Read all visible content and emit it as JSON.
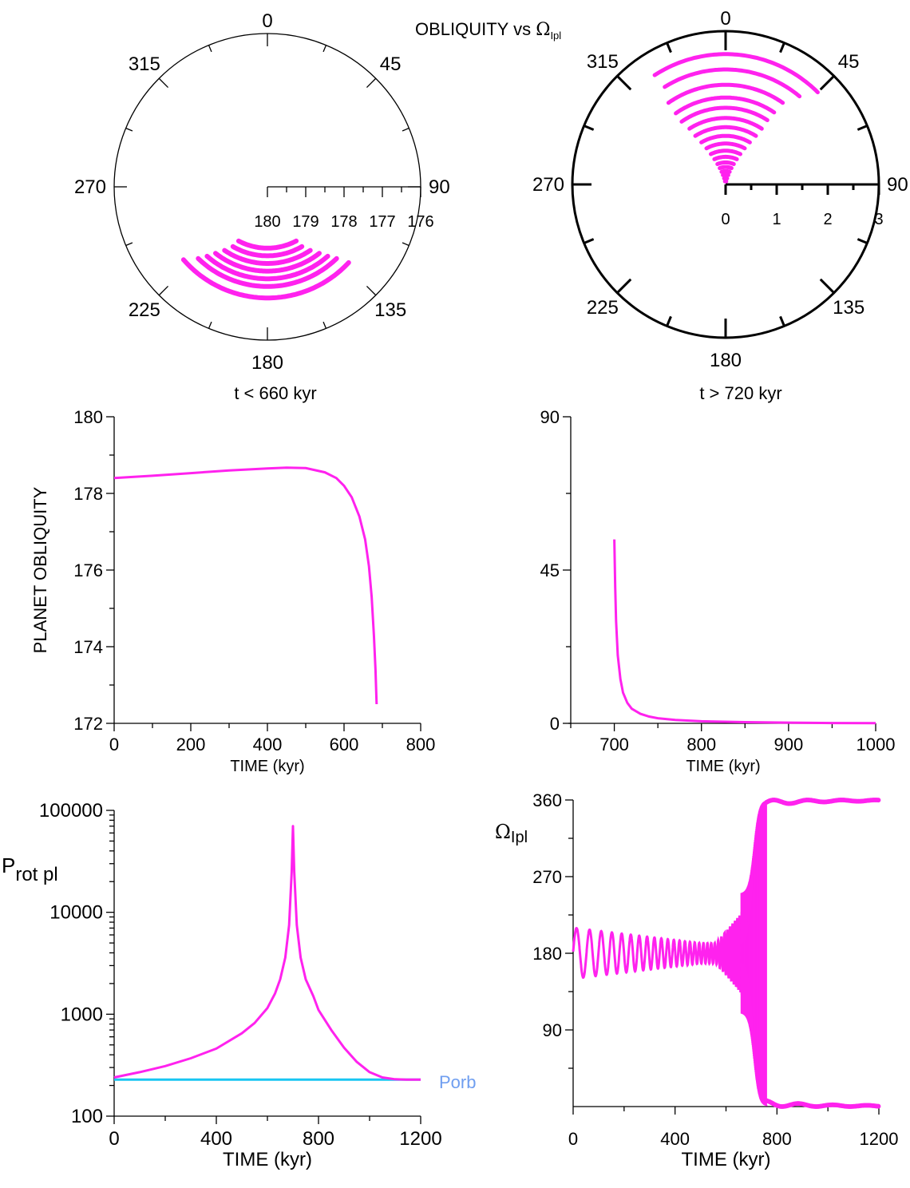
{
  "figure": {
    "title_prefix": "OBLIQUITY vs ",
    "title_symbol": "Ω",
    "title_sub": "Ipl",
    "label_left": "t < 660 kyr",
    "label_right": "t > 720 kyr"
  },
  "colors": {
    "series": "#ff22ee",
    "porb": "#19c6f2",
    "porb_label": "#6f9ef0",
    "axis": "#000000"
  },
  "chart_data": [
    {
      "id": "polar_left",
      "type": "scatter",
      "coords": "polar",
      "angle_labels": [
        "0",
        "45",
        "90",
        "135",
        "180",
        "225",
        "270",
        "315"
      ],
      "radial_tick_labels": [
        "180",
        "179",
        "178",
        "177",
        "176"
      ],
      "radial_range": [
        180,
        176
      ],
      "description_of_data": "obliquity (deg) vs node angle (deg)",
      "arcs": [
        {
          "r": 178.4,
          "theta": [
            152,
            208
          ]
        },
        {
          "r": 178.2,
          "theta": [
            150,
            210
          ]
        },
        {
          "r": 178.0,
          "theta": [
            146,
            214
          ]
        },
        {
          "r": 177.8,
          "theta": [
            142,
            218
          ]
        },
        {
          "r": 177.6,
          "theta": [
            139,
            221
          ]
        },
        {
          "r": 177.4,
          "theta": [
            136,
            224
          ]
        },
        {
          "r": 177.1,
          "theta": [
            133,
            229
          ]
        }
      ]
    },
    {
      "id": "polar_right",
      "type": "scatter",
      "coords": "polar",
      "angle_labels": [
        "0",
        "45",
        "90",
        "135",
        "180",
        "225",
        "270",
        "315"
      ],
      "radial_tick_labels": [
        "0",
        "1",
        "2",
        "3"
      ],
      "radial_range": [
        0,
        3
      ],
      "arcs": [
        {
          "r": 2.55,
          "theta": [
            -33,
            45
          ]
        },
        {
          "r": 2.25,
          "theta": [
            -32,
            40
          ]
        },
        {
          "r": 1.95,
          "theta": [
            -35,
            35
          ]
        },
        {
          "r": 1.7,
          "theta": [
            -35,
            34
          ]
        },
        {
          "r": 1.5,
          "theta": [
            -35,
            33
          ]
        },
        {
          "r": 1.3,
          "theta": [
            -33,
            33
          ]
        },
        {
          "r": 1.12,
          "theta": [
            -32,
            32
          ]
        },
        {
          "r": 0.95,
          "theta": [
            -30,
            30
          ]
        },
        {
          "r": 0.8,
          "theta": [
            -28,
            28
          ]
        },
        {
          "r": 0.66,
          "theta": [
            -26,
            26
          ]
        },
        {
          "r": 0.54,
          "theta": [
            -24,
            24
          ]
        },
        {
          "r": 0.43,
          "theta": [
            -22,
            22
          ]
        },
        {
          "r": 0.34,
          "theta": [
            -20,
            20
          ]
        },
        {
          "r": 0.26,
          "theta": [
            -18,
            18
          ]
        },
        {
          "r": 0.19,
          "theta": [
            -16,
            16
          ]
        },
        {
          "r": 0.12,
          "theta": [
            -14,
            14
          ]
        },
        {
          "r": 0.06,
          "theta": [
            -12,
            12
          ]
        }
      ]
    },
    {
      "id": "obliquity_early",
      "type": "line",
      "xlabel": "TIME (kyr)",
      "ylabel": "PLANET OBLIQUITY",
      "xlim": [
        0,
        800
      ],
      "ylim": [
        172,
        180
      ],
      "xticks": [
        "0",
        "200",
        "400",
        "600",
        "800"
      ],
      "yticks": [
        "172",
        "174",
        "176",
        "178",
        "180"
      ],
      "x": [
        0,
        100,
        200,
        300,
        400,
        450,
        500,
        550,
        580,
        600,
        620,
        640,
        655,
        665,
        672,
        678,
        682,
        685
      ],
      "y": [
        178.4,
        178.46,
        178.53,
        178.6,
        178.65,
        178.67,
        178.66,
        178.55,
        178.4,
        178.2,
        177.9,
        177.4,
        176.8,
        176.1,
        175.3,
        174.3,
        173.4,
        172.5
      ]
    },
    {
      "id": "obliquity_late",
      "type": "line",
      "xlabel": "TIME (kyr)",
      "ylabel": "",
      "xlim": [
        650,
        1000
      ],
      "ylim": [
        0,
        90
      ],
      "xticks": [
        "700",
        "800",
        "900",
        "1000"
      ],
      "yticks": [
        "0",
        "45",
        "90"
      ],
      "x": [
        700,
        701,
        702,
        704,
        707,
        710,
        715,
        720,
        730,
        740,
        750,
        770,
        800,
        850,
        900,
        950,
        1000
      ],
      "y": [
        54,
        40,
        30,
        20,
        13,
        9,
        6,
        4.3,
        2.8,
        2.0,
        1.5,
        1.0,
        0.6,
        0.35,
        0.2,
        0.1,
        0.05
      ]
    },
    {
      "id": "prot",
      "type": "line",
      "xlabel": "TIME (kyr)",
      "ylabel_main": "P",
      "ylabel_sub": "rot pl",
      "yscale": "log",
      "xlim": [
        0,
        1200
      ],
      "ylim": [
        100,
        100000
      ],
      "xticks": [
        "0",
        "400",
        "800",
        "1200"
      ],
      "yticks": [
        "100",
        "1000",
        "10000",
        "100000"
      ],
      "series": [
        {
          "x": [
            0,
            100,
            200,
            300,
            400,
            500,
            550,
            600,
            630,
            650,
            670,
            685,
            695,
            700,
            705,
            715,
            730,
            750,
            780,
            800,
            850,
            900,
            950,
            1000,
            1050,
            1100,
            1150,
            1200
          ],
          "y": [
            240,
            270,
            310,
            370,
            460,
            650,
            820,
            1150,
            1600,
            2200,
            3600,
            7500,
            25000,
            70000,
            25000,
            7500,
            3600,
            2200,
            1500,
            1100,
            700,
            470,
            340,
            270,
            240,
            230,
            228,
            228
          ]
        },
        {
          "name": "Porb",
          "x": [
            0,
            1200
          ],
          "y": [
            228,
            228
          ]
        }
      ]
    },
    {
      "id": "node",
      "type": "scatter",
      "xlabel": "TIME (kyr)",
      "ylabel_main": "Ω",
      "ylabel_sub": "Ipl",
      "xlim": [
        0,
        1200
      ],
      "ylim": [
        0,
        360
      ],
      "xticks": [
        "0",
        "400",
        "800",
        "1200"
      ],
      "yticks": [
        "90",
        "180",
        "270",
        "360"
      ],
      "oscillation": {
        "center": 180,
        "amp_start": 30,
        "amp_min": 12,
        "period_start": 58,
        "period_end": 8,
        "switch_start": 660,
        "switch_end": 760,
        "hi_value": 360,
        "lo_value": 0,
        "x_end": 1200
      }
    }
  ]
}
